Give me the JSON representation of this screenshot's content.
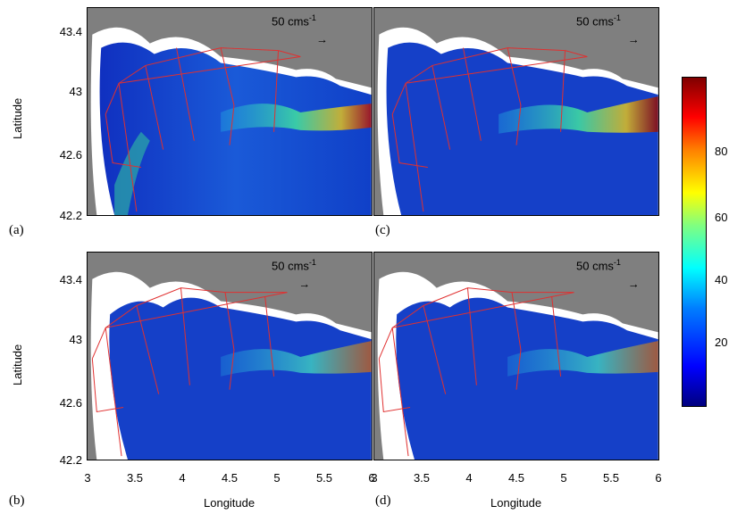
{
  "figure": {
    "y_axis_title": "Latitude",
    "x_axis_title": "Longitude",
    "y_ticks": [
      "43.4",
      "43",
      "42.6",
      "42.2"
    ],
    "x_ticks": [
      "3",
      "3.5",
      "4",
      "4.5",
      "5",
      "5.5",
      "6"
    ],
    "scale_label": "50 cms",
    "scale_unit_exp": "-1",
    "colorbar_ticks": [
      "80",
      "60",
      "40",
      "20"
    ],
    "colors": {
      "land": "#7f7f7f",
      "coast_fill": "#ffffff",
      "track": "#e03030",
      "frame": "#000000"
    }
  },
  "panels": [
    {
      "letter": "(a)"
    },
    {
      "letter": "(c)"
    },
    {
      "letter": "(b)"
    },
    {
      "letter": "(d)"
    }
  ],
  "chart_data": {
    "type": "heatmap",
    "title": "",
    "xlabel": "Longitude",
    "ylabel": "Latitude",
    "xlim": [
      3,
      6
    ],
    "ylim": [
      42.2,
      43.6
    ],
    "colorbar_range": [
      0,
      100
    ],
    "colorbar_ticks": [
      20,
      40,
      60,
      80
    ],
    "panel_count": 4,
    "panel_labels": [
      "(a)",
      "(b)",
      "(c)",
      "(d)"
    ],
    "vector_scale": "50 cms-1"
  }
}
